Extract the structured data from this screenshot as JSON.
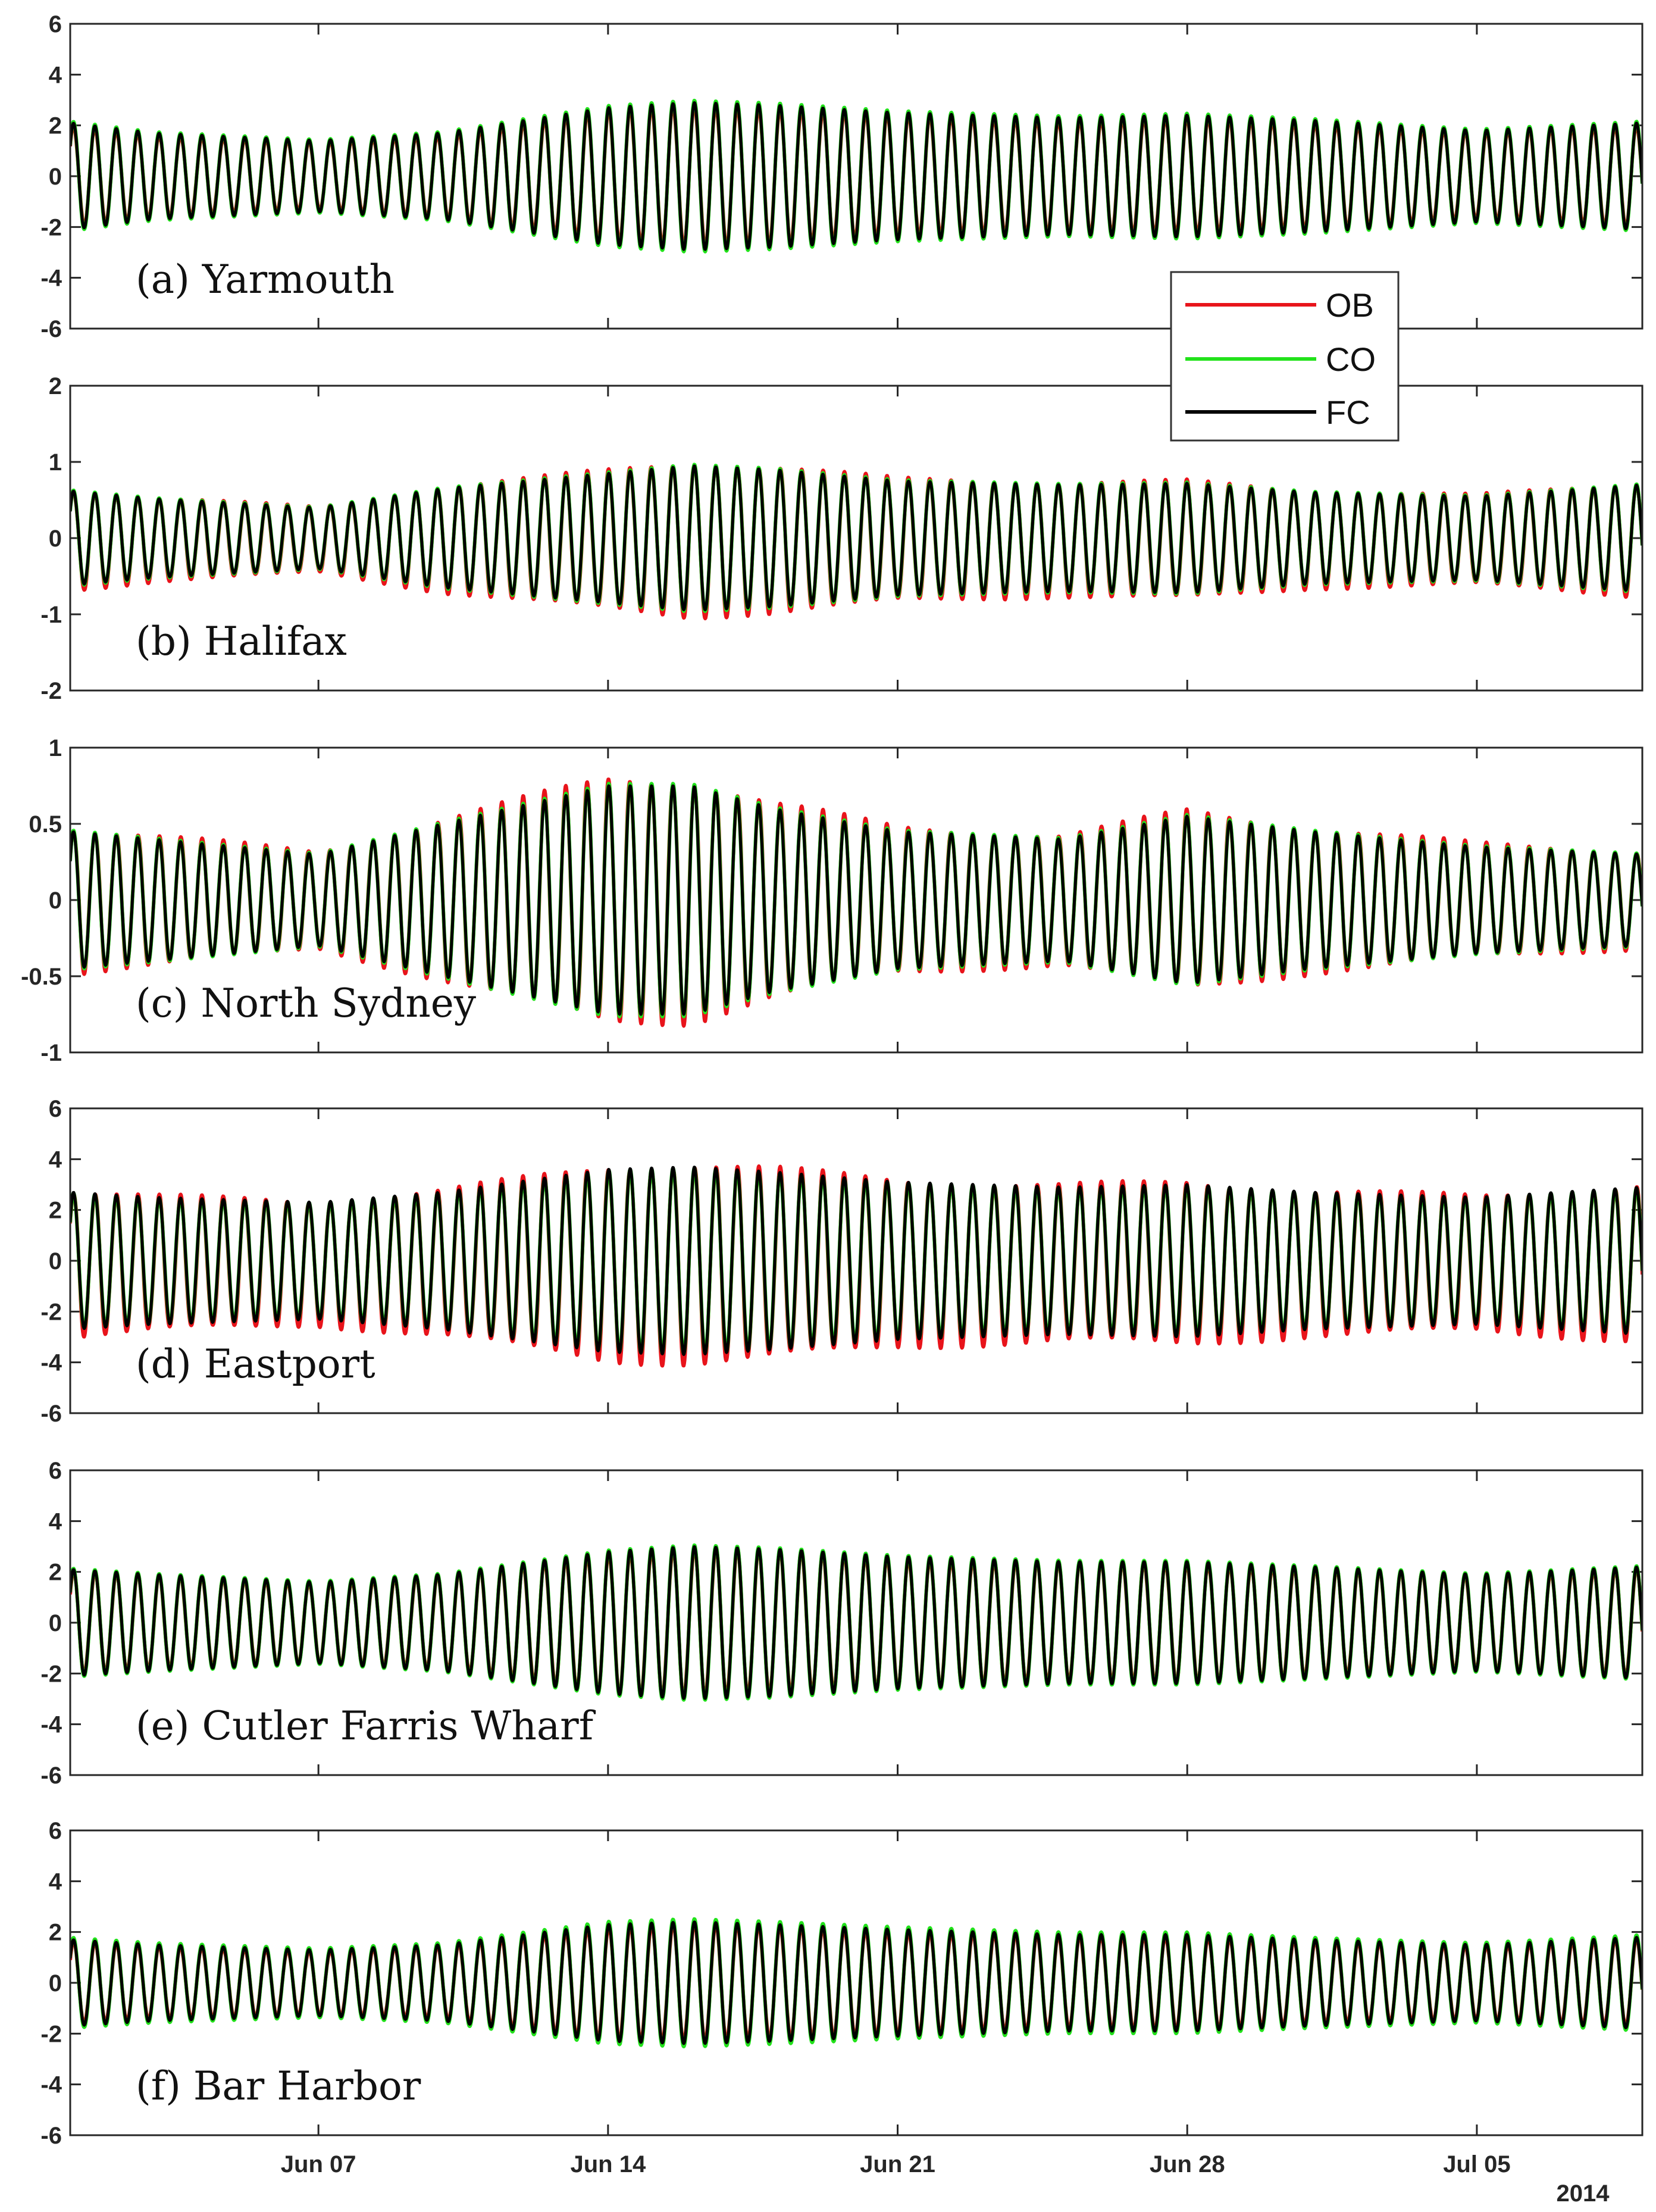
{
  "figure": {
    "year_label": "2014",
    "legend": [
      {
        "label": "OB",
        "color": "#e8141b"
      },
      {
        "label": "CO",
        "color": "#22e21b"
      },
      {
        "label": "FC",
        "color": "#000000"
      }
    ]
  },
  "chart_data": [
    {
      "type": "line",
      "title": "(a) Yarmouth",
      "x_range": [
        "2014-06-01",
        "2014-07-09"
      ],
      "x_ticks": [
        {
          "date": "2014-06-07",
          "label": "Jun 07"
        },
        {
          "date": "2014-06-14",
          "label": "Jun 14"
        },
        {
          "date": "2014-06-21",
          "label": "Jun 21"
        },
        {
          "date": "2014-06-28",
          "label": "Jun 28"
        },
        {
          "date": "2014-07-05",
          "label": "Jul 05"
        }
      ],
      "ylim": [
        -6,
        6
      ],
      "y_ticks": [
        6,
        4,
        2,
        0,
        -2,
        -4,
        -6
      ],
      "amplitude_envelope": {
        "dates": [
          "2014-06-01",
          "2014-06-03",
          "2014-06-07",
          "2014-06-10",
          "2014-06-14",
          "2014-06-16",
          "2014-06-18",
          "2014-06-21",
          "2014-06-25",
          "2014-06-28",
          "2014-07-01",
          "2014-07-05",
          "2014-07-09"
        ],
        "values": [
          2.1,
          1.7,
          1.4,
          1.7,
          2.7,
          2.9,
          2.8,
          2.5,
          2.3,
          2.4,
          2.2,
          1.8,
          2.1
        ]
      },
      "series": [
        {
          "name": "OB",
          "color": "#e8141b",
          "amplitude_scale": 0.96,
          "offset": 0.0,
          "noise": 0.02
        },
        {
          "name": "CO",
          "color": "#22e21b",
          "amplitude_scale": 1.03,
          "offset": 0.0,
          "noise": 0.0
        },
        {
          "name": "FC",
          "color": "#000000",
          "amplitude_scale": 1.0,
          "offset": 0.0,
          "noise": 0.0
        }
      ]
    },
    {
      "type": "line",
      "title": "(b) Halifax",
      "x_range": [
        "2014-06-01",
        "2014-07-09"
      ],
      "x_ticks": [
        {
          "date": "2014-06-07",
          "label": "Jun 07"
        },
        {
          "date": "2014-06-14",
          "label": "Jun 14"
        },
        {
          "date": "2014-06-21",
          "label": "Jun 21"
        },
        {
          "date": "2014-06-28",
          "label": "Jun 28"
        },
        {
          "date": "2014-07-05",
          "label": "Jul 05"
        }
      ],
      "ylim": [
        -2,
        2
      ],
      "y_ticks": [
        2,
        1,
        0,
        -1,
        -2
      ],
      "amplitude_envelope": {
        "dates": [
          "2014-06-01",
          "2014-06-03",
          "2014-06-07",
          "2014-06-10",
          "2014-06-14",
          "2014-06-16",
          "2014-06-18",
          "2014-06-21",
          "2014-06-25",
          "2014-06-28",
          "2014-07-01",
          "2014-07-05",
          "2014-07-09"
        ],
        "values": [
          0.62,
          0.52,
          0.4,
          0.65,
          0.85,
          0.95,
          0.9,
          0.75,
          0.7,
          0.72,
          0.6,
          0.55,
          0.7
        ]
      },
      "series": [
        {
          "name": "OB",
          "color": "#e8141b",
          "amplitude_scale": 1.06,
          "offset": -0.02,
          "noise": 0.04
        },
        {
          "name": "CO",
          "color": "#22e21b",
          "amplitude_scale": 1.02,
          "offset": 0.0,
          "noise": 0.0
        },
        {
          "name": "FC",
          "color": "#000000",
          "amplitude_scale": 1.0,
          "offset": 0.0,
          "noise": 0.0
        }
      ]
    },
    {
      "type": "line",
      "title": "(c) North Sydney",
      "x_range": [
        "2014-06-01",
        "2014-07-09"
      ],
      "x_ticks": [
        {
          "date": "2014-06-07",
          "label": "Jun 07"
        },
        {
          "date": "2014-06-14",
          "label": "Jun 14"
        },
        {
          "date": "2014-06-21",
          "label": "Jun 21"
        },
        {
          "date": "2014-06-28",
          "label": "Jun 28"
        },
        {
          "date": "2014-07-05",
          "label": "Jul 05"
        }
      ],
      "ylim": [
        -1,
        1
      ],
      "y_ticks": [
        1,
        0.5,
        0,
        -0.5,
        -1
      ],
      "amplitude_envelope": {
        "dates": [
          "2014-06-01",
          "2014-06-03",
          "2014-06-07",
          "2014-06-10",
          "2014-06-14",
          "2014-06-16",
          "2014-06-18",
          "2014-06-21",
          "2014-06-25",
          "2014-06-28",
          "2014-07-01",
          "2014-07-05",
          "2014-07-09"
        ],
        "values": [
          0.45,
          0.4,
          0.3,
          0.5,
          0.75,
          0.75,
          0.6,
          0.45,
          0.4,
          0.55,
          0.45,
          0.35,
          0.3
        ]
      },
      "series": [
        {
          "name": "OB",
          "color": "#e8141b",
          "amplitude_scale": 1.05,
          "offset": 0.0,
          "noise": 0.05
        },
        {
          "name": "CO",
          "color": "#22e21b",
          "amplitude_scale": 1.02,
          "offset": 0.0,
          "noise": 0.0
        },
        {
          "name": "FC",
          "color": "#000000",
          "amplitude_scale": 1.0,
          "offset": 0.0,
          "noise": 0.0
        }
      ]
    },
    {
      "type": "line",
      "title": "(d) Eastport",
      "x_range": [
        "2014-06-01",
        "2014-07-09"
      ],
      "x_ticks": [
        {
          "date": "2014-06-07",
          "label": "Jun 07"
        },
        {
          "date": "2014-06-14",
          "label": "Jun 14"
        },
        {
          "date": "2014-06-21",
          "label": "Jun 21"
        },
        {
          "date": "2014-06-28",
          "label": "Jun 28"
        },
        {
          "date": "2014-07-05",
          "label": "Jul 05"
        }
      ],
      "ylim": [
        -6,
        6
      ],
      "y_ticks": [
        6,
        4,
        2,
        0,
        -2,
        -4,
        -6
      ],
      "amplitude_envelope": {
        "dates": [
          "2014-06-01",
          "2014-06-03",
          "2014-06-07",
          "2014-06-10",
          "2014-06-14",
          "2014-06-16",
          "2014-06-18",
          "2014-06-21",
          "2014-06-25",
          "2014-06-28",
          "2014-07-01",
          "2014-07-05",
          "2014-07-09"
        ],
        "values": [
          2.7,
          2.5,
          2.3,
          2.7,
          3.6,
          3.7,
          3.5,
          3.1,
          2.9,
          3.0,
          2.7,
          2.5,
          2.9
        ]
      },
      "series": [
        {
          "name": "OB",
          "color": "#e8141b",
          "amplitude_scale": 1.05,
          "offset": -0.1,
          "noise": 0.05
        },
        {
          "name": "CO",
          "color": "#22e21b",
          "amplitude_scale": 0.99,
          "offset": 0.0,
          "noise": 0.0
        },
        {
          "name": "FC",
          "color": "#000000",
          "amplitude_scale": 1.0,
          "offset": 0.0,
          "noise": 0.0
        }
      ]
    },
    {
      "type": "line",
      "title": "(e) Cutler Farris Wharf",
      "x_range": [
        "2014-06-01",
        "2014-07-09"
      ],
      "x_ticks": [
        {
          "date": "2014-06-07",
          "label": "Jun 07"
        },
        {
          "date": "2014-06-14",
          "label": "Jun 14"
        },
        {
          "date": "2014-06-21",
          "label": "Jun 21"
        },
        {
          "date": "2014-06-28",
          "label": "Jun 28"
        },
        {
          "date": "2014-07-05",
          "label": "Jul 05"
        }
      ],
      "ylim": [
        -6,
        6
      ],
      "y_ticks": [
        6,
        4,
        2,
        0,
        -2,
        -4,
        -6
      ],
      "amplitude_envelope": {
        "dates": [
          "2014-06-01",
          "2014-06-03",
          "2014-06-07",
          "2014-06-10",
          "2014-06-14",
          "2014-06-16",
          "2014-06-18",
          "2014-06-21",
          "2014-06-25",
          "2014-06-28",
          "2014-07-01",
          "2014-07-05",
          "2014-07-09"
        ],
        "values": [
          2.1,
          1.9,
          1.6,
          1.9,
          2.8,
          3.0,
          2.9,
          2.6,
          2.4,
          2.4,
          2.2,
          1.9,
          2.2
        ]
      },
      "series": [
        {
          "name": "OB",
          "color": "#e8141b",
          "amplitude_scale": 0.98,
          "offset": 0.0,
          "noise": 0.03
        },
        {
          "name": "CO",
          "color": "#22e21b",
          "amplitude_scale": 1.02,
          "offset": 0.0,
          "noise": 0.0
        },
        {
          "name": "FC",
          "color": "#000000",
          "amplitude_scale": 1.0,
          "offset": 0.0,
          "noise": 0.0
        }
      ]
    },
    {
      "type": "line",
      "title": "(f) Bar Harbor",
      "x_range": [
        "2014-06-01",
        "2014-07-09"
      ],
      "x_ticks": [
        {
          "date": "2014-06-07",
          "label": "Jun 07"
        },
        {
          "date": "2014-06-14",
          "label": "Jun 14"
        },
        {
          "date": "2014-06-21",
          "label": "Jun 21"
        },
        {
          "date": "2014-06-28",
          "label": "Jun 28"
        },
        {
          "date": "2014-07-05",
          "label": "Jul 05"
        }
      ],
      "ylim": [
        -6,
        6
      ],
      "y_ticks": [
        6,
        4,
        2,
        0,
        -2,
        -4,
        -6
      ],
      "amplitude_envelope": {
        "dates": [
          "2014-06-01",
          "2014-06-03",
          "2014-06-07",
          "2014-06-10",
          "2014-06-14",
          "2014-06-16",
          "2014-06-18",
          "2014-06-21",
          "2014-06-25",
          "2014-06-28",
          "2014-07-01",
          "2014-07-05",
          "2014-07-09"
        ],
        "values": [
          1.7,
          1.5,
          1.3,
          1.5,
          2.3,
          2.4,
          2.3,
          2.1,
          1.9,
          1.9,
          1.7,
          1.5,
          1.8
        ]
      },
      "series": [
        {
          "name": "OB",
          "color": "#e8141b",
          "amplitude_scale": 0.97,
          "offset": 0.0,
          "noise": 0.02
        },
        {
          "name": "CO",
          "color": "#22e21b",
          "amplitude_scale": 1.05,
          "offset": 0.0,
          "noise": 0.0
        },
        {
          "name": "FC",
          "color": "#000000",
          "amplitude_scale": 1.0,
          "offset": 0.0,
          "noise": 0.0
        }
      ]
    }
  ]
}
